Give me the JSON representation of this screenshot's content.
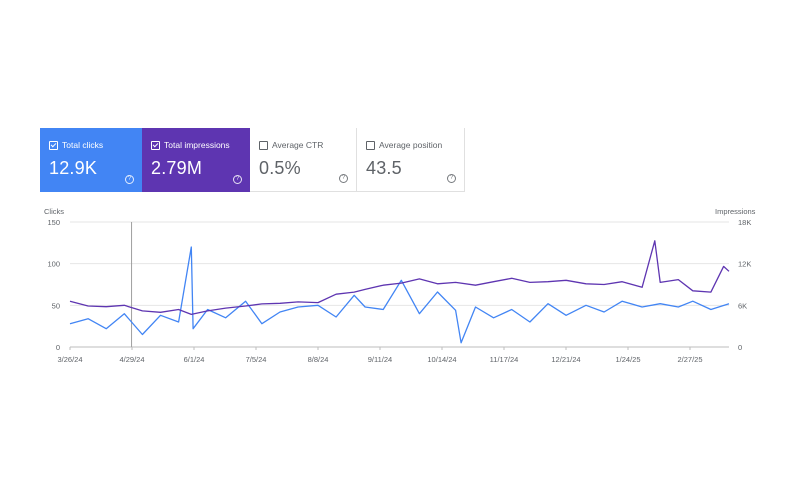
{
  "cards": [
    {
      "label": "Total clicks",
      "value": "12.9K",
      "checked": true,
      "help": "?"
    },
    {
      "label": "Total impressions",
      "value": "2.79M",
      "checked": true,
      "help": "?"
    },
    {
      "label": "Average CTR",
      "value": "0.5%",
      "checked": false,
      "help": "?"
    },
    {
      "label": "Average position",
      "value": "43.5",
      "checked": false,
      "help": "?"
    }
  ],
  "colors": {
    "clicks": "#4285f4",
    "impressions": "#5e35b1",
    "grid": "#e6e6e6",
    "marker": "#9e9e9e"
  },
  "chart_data": {
    "type": "line",
    "left_axis_title": "Clicks",
    "right_axis_title": "Impressions",
    "left_ylim": [
      0,
      150
    ],
    "right_ylim": [
      0,
      18000
    ],
    "left_ticks": [
      "0",
      "50",
      "100",
      "150"
    ],
    "right_ticks": [
      "0",
      "6K",
      "12K",
      "18K"
    ],
    "x_ticks": [
      "3/26/24",
      "4/29/24",
      "6/1/24",
      "7/5/24",
      "8/8/24",
      "9/11/24",
      "10/14/24",
      "11/17/24",
      "12/21/24",
      "1/24/25",
      "2/27/25"
    ],
    "date_start": "2024-03-26",
    "date_end": "2025-03-25",
    "marker_date": "2024-04-29",
    "grid": true,
    "series": [
      {
        "name": "Clicks",
        "axis": "left",
        "x": [
          "2024-03-26",
          "2024-04-05",
          "2024-04-15",
          "2024-04-25",
          "2024-05-05",
          "2024-05-15",
          "2024-05-25",
          "2024-06-01",
          "2024-06-02",
          "2024-06-10",
          "2024-06-20",
          "2024-07-01",
          "2024-07-10",
          "2024-07-20",
          "2024-07-30",
          "2024-08-10",
          "2024-08-20",
          "2024-08-30",
          "2024-09-05",
          "2024-09-15",
          "2024-09-25",
          "2024-10-05",
          "2024-10-15",
          "2024-10-25",
          "2024-10-28",
          "2024-11-05",
          "2024-11-15",
          "2024-11-25",
          "2024-12-05",
          "2024-12-15",
          "2024-12-25",
          "2025-01-05",
          "2025-01-15",
          "2025-01-25",
          "2025-02-05",
          "2025-02-15",
          "2025-02-25",
          "2025-03-05",
          "2025-03-15",
          "2025-03-25"
        ],
        "values": [
          28,
          34,
          22,
          40,
          15,
          38,
          30,
          120,
          22,
          45,
          35,
          55,
          28,
          42,
          48,
          50,
          36,
          62,
          48,
          45,
          80,
          40,
          66,
          44,
          5,
          48,
          35,
          45,
          30,
          52,
          38,
          50,
          42,
          55,
          48,
          52,
          48,
          55,
          45,
          52
        ]
      },
      {
        "name": "Impressions",
        "axis": "right",
        "x": [
          "2024-03-26",
          "2024-04-05",
          "2024-04-15",
          "2024-04-25",
          "2024-05-05",
          "2024-05-15",
          "2024-05-25",
          "2024-06-01",
          "2024-06-10",
          "2024-06-20",
          "2024-07-01",
          "2024-07-10",
          "2024-07-20",
          "2024-07-30",
          "2024-08-10",
          "2024-08-20",
          "2024-08-30",
          "2024-09-05",
          "2024-09-15",
          "2024-09-25",
          "2024-10-05",
          "2024-10-15",
          "2024-10-25",
          "2024-11-05",
          "2024-11-15",
          "2024-11-25",
          "2024-12-05",
          "2024-12-15",
          "2024-12-25",
          "2025-01-05",
          "2025-01-15",
          "2025-01-25",
          "2025-02-05",
          "2025-02-12",
          "2025-02-15",
          "2025-02-25",
          "2025-03-05",
          "2025-03-15",
          "2025-03-22",
          "2025-03-25"
        ],
        "values": [
          6600,
          5900,
          5800,
          6000,
          5200,
          5000,
          5400,
          4700,
          5200,
          5600,
          5900,
          6200,
          6300,
          6500,
          6400,
          7600,
          7900,
          8300,
          8900,
          9200,
          9800,
          9100,
          9300,
          8900,
          9400,
          9900,
          9300,
          9400,
          9600,
          9100,
          9000,
          9400,
          8600,
          15300,
          9300,
          9700,
          8100,
          7900,
          11600,
          10900
        ]
      }
    ]
  }
}
